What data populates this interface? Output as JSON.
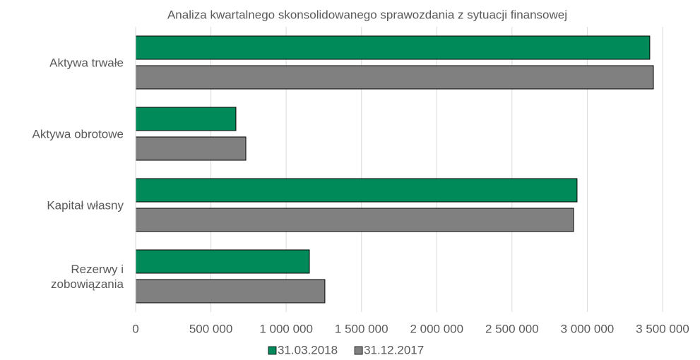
{
  "chart_data": {
    "type": "barh",
    "title": "Analiza kwartalnego skonsolidowanego sprawozdania z sytuacji finansowej",
    "categories": [
      "Aktywa trwałe",
      "Aktywa obrotowe",
      "Kapitał własny",
      "Rezerwy i zobowiązania"
    ],
    "series": [
      {
        "name": "31.03.2018",
        "color": "#008a5a",
        "values": [
          3415000,
          666000,
          2932000,
          1154000
        ]
      },
      {
        "name": "31.12.2017",
        "color": "#808080",
        "values": [
          3439000,
          732000,
          2909000,
          1257000
        ]
      }
    ],
    "xlim": [
      0,
      3500000
    ],
    "xticks": [
      0,
      {
        "value": 500000,
        "label": "500 000"
      },
      {
        "value": 1000000,
        "label": "1 000 000"
      },
      {
        "value": 1500000,
        "label": "1 500 000"
      },
      {
        "value": 2000000,
        "label": "2 000 000"
      },
      {
        "value": 2500000,
        "label": "2 500 000"
      },
      {
        "value": 3000000,
        "label": "3 000 000"
      },
      {
        "value": 3500000,
        "label": "3 500 000"
      }
    ],
    "grid": true,
    "legend": "bottom"
  }
}
